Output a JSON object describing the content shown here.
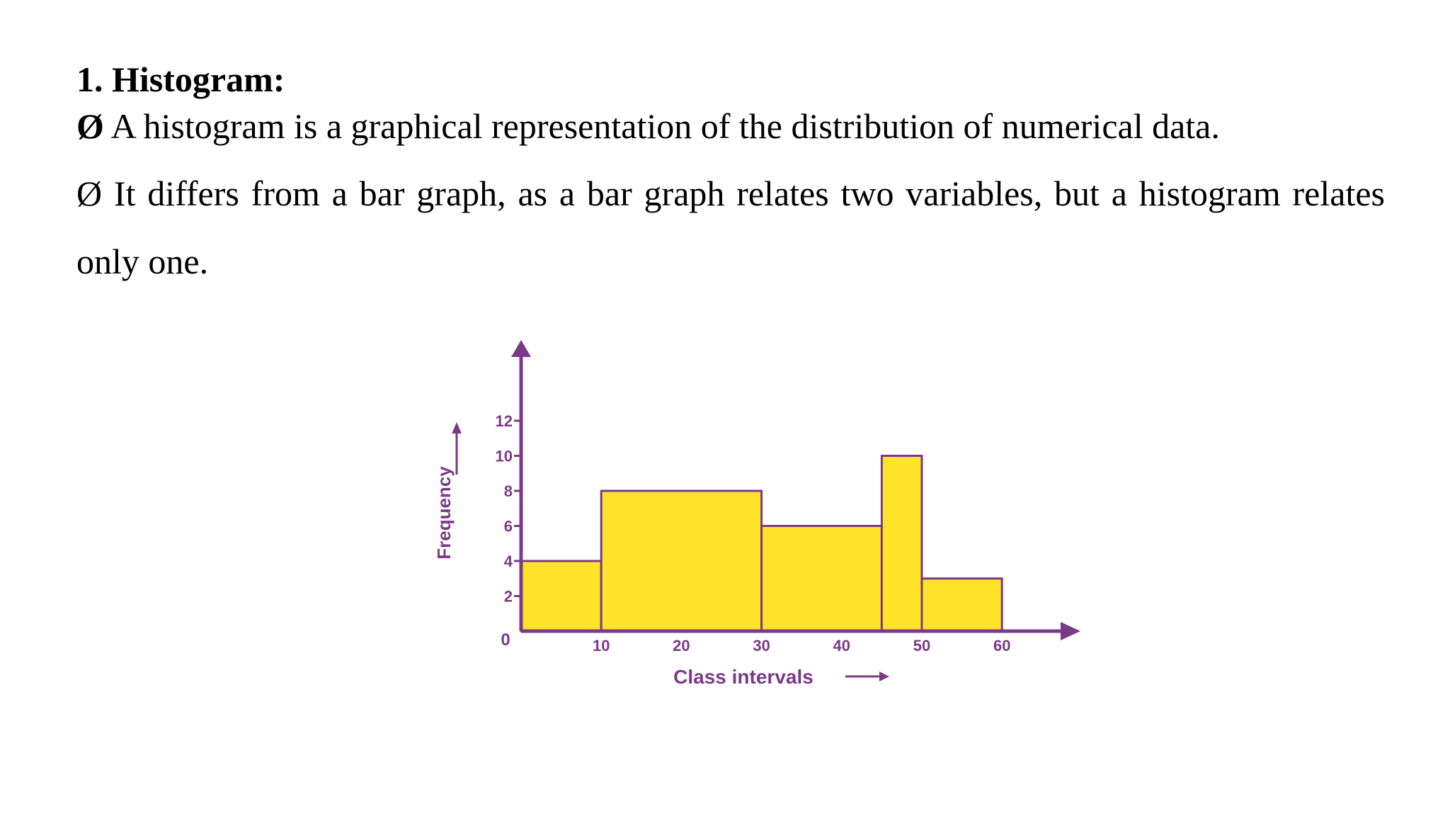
{
  "heading": "1. Histogram:",
  "bullets": [
    {
      "symbol": "Ø",
      "text": "A histogram is a graphical representation of the distribution of numerical data."
    },
    {
      "symbol": "Ø",
      "text": "It differs from a bar graph, as a bar graph relates two variables, but a histogram relates only one."
    }
  ],
  "colors": {
    "bar_fill": "#ffe329",
    "axis": "#7a3a87",
    "text": "#000000"
  },
  "chart_data": {
    "type": "bar",
    "bins": [
      {
        "from": 0,
        "to": 10,
        "value": 4
      },
      {
        "from": 10,
        "to": 30,
        "value": 8
      },
      {
        "from": 30,
        "to": 45,
        "value": 6
      },
      {
        "from": 45,
        "to": 50,
        "value": 10
      },
      {
        "from": 50,
        "to": 60,
        "value": 3
      }
    ],
    "x_ticks": [
      "10",
      "20",
      "30",
      "40",
      "50",
      "60"
    ],
    "x_tick_values": [
      10,
      20,
      30,
      40,
      50,
      60
    ],
    "y_ticks": [
      "2",
      "4",
      "6",
      "8",
      "10",
      "12"
    ],
    "y_tick_values": [
      2,
      4,
      6,
      8,
      10,
      12
    ],
    "origin_label": "0",
    "xlabel": "Class intervals",
    "ylabel": "Frequency",
    "xlim": [
      0,
      60
    ],
    "ylim": [
      0,
      12
    ],
    "grid": false
  }
}
